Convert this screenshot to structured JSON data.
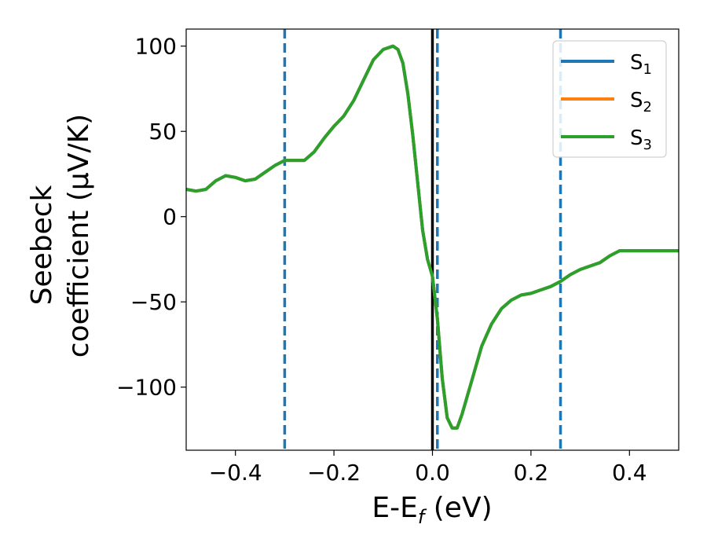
{
  "chart_data": {
    "type": "line",
    "xlabel": {
      "main": "E-E",
      "sub": "f",
      "unit": " (eV)"
    },
    "ylabel": {
      "line1": "Seebeck",
      "line2": "coefficient  (μV/K)"
    },
    "xlim": [
      -0.5,
      0.5
    ],
    "ylim": [
      -137,
      110
    ],
    "xticks": [
      -0.4,
      -0.2,
      0.0,
      0.2,
      0.4
    ],
    "xtick_labels": [
      "−0.4",
      "−0.2",
      "0.0",
      "0.2",
      "0.4"
    ],
    "yticks": [
      -100,
      -50,
      0,
      50,
      100
    ],
    "ytick_labels": [
      "−100",
      "−50",
      "0",
      "50",
      "100"
    ],
    "grid": false,
    "legend_position": "top-right",
    "vlines": [
      {
        "x": -0.3,
        "style": "dashed",
        "color": "#1f77b4"
      },
      {
        "x": 0.01,
        "style": "dashed",
        "color": "#1f77b4"
      },
      {
        "x": 0.26,
        "style": "dashed",
        "color": "#1f77b4"
      },
      {
        "x": 0.0,
        "style": "solid",
        "color": "#000000"
      }
    ],
    "x": [
      -0.5,
      -0.48,
      -0.46,
      -0.44,
      -0.42,
      -0.4,
      -0.38,
      -0.36,
      -0.34,
      -0.32,
      -0.3,
      -0.28,
      -0.26,
      -0.24,
      -0.22,
      -0.2,
      -0.18,
      -0.16,
      -0.14,
      -0.12,
      -0.1,
      -0.08,
      -0.07,
      -0.06,
      -0.05,
      -0.04,
      -0.03,
      -0.02,
      -0.01,
      0.0,
      0.01,
      0.02,
      0.03,
      0.04,
      0.05,
      0.06,
      0.08,
      0.1,
      0.12,
      0.14,
      0.16,
      0.18,
      0.2,
      0.22,
      0.24,
      0.26,
      0.28,
      0.3,
      0.32,
      0.34,
      0.36,
      0.38,
      0.4,
      0.42,
      0.44,
      0.46,
      0.48,
      0.5
    ],
    "series": [
      {
        "name": "S",
        "sub": "1",
        "color": "#1f77b4",
        "values": [
          16,
          15,
          16,
          21,
          24,
          23,
          21,
          22,
          26,
          30,
          33,
          33,
          33,
          38,
          46,
          53,
          59,
          68,
          80,
          92,
          98,
          100,
          98,
          90,
          72,
          48,
          20,
          -8,
          -25,
          -35,
          -60,
          -95,
          -118,
          -124,
          -124,
          -116,
          -96,
          -76,
          -63,
          -54,
          -49,
          -46,
          -45,
          -43,
          -41,
          -38,
          -34,
          -31,
          -29,
          -27,
          -23,
          -20,
          -20,
          -20,
          -20,
          -20,
          -20,
          -20
        ]
      },
      {
        "name": "S",
        "sub": "2",
        "color": "#ff7f0e",
        "values": [
          16,
          15,
          16,
          21,
          24,
          23,
          21,
          22,
          26,
          30,
          33,
          33,
          33,
          38,
          46,
          53,
          59,
          68,
          80,
          92,
          98,
          100,
          98,
          90,
          72,
          48,
          20,
          -8,
          -25,
          -35,
          -60,
          -95,
          -118,
          -124,
          -124,
          -116,
          -96,
          -76,
          -63,
          -54,
          -49,
          -46,
          -45,
          -43,
          -41,
          -38,
          -34,
          -31,
          -29,
          -27,
          -23,
          -20,
          -20,
          -20,
          -20,
          -20,
          -20,
          -20
        ]
      },
      {
        "name": "S",
        "sub": "3",
        "color": "#2ca02c",
        "values": [
          16,
          15,
          16,
          21,
          24,
          23,
          21,
          22,
          26,
          30,
          33,
          33,
          33,
          38,
          46,
          53,
          59,
          68,
          80,
          92,
          98,
          100,
          98,
          90,
          72,
          48,
          20,
          -8,
          -25,
          -35,
          -60,
          -95,
          -118,
          -124,
          -124,
          -116,
          -96,
          -76,
          -63,
          -54,
          -49,
          -46,
          -45,
          -43,
          -41,
          -38,
          -34,
          -31,
          -29,
          -27,
          -23,
          -20,
          -20,
          -20,
          -20,
          -20,
          -20,
          -20
        ]
      }
    ]
  }
}
